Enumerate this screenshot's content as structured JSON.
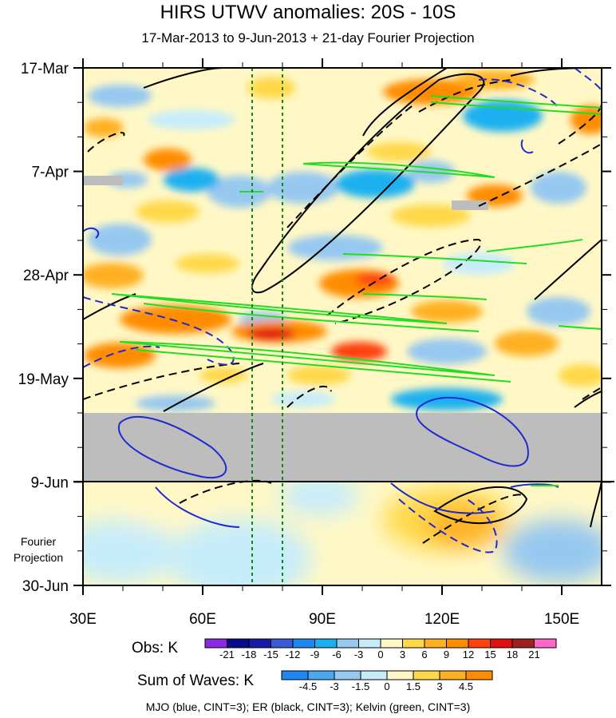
{
  "title": "HIRS UTWV anomalies: 20S - 10S",
  "subtitle": "17-Mar-2013 to 9-Jun-2013 + 21-day Fourier Projection",
  "footnote": "MJO (blue, CINT=3); ER (black, CINT=3); Kelvin (green, CINT=3)",
  "fourier_label": [
    "Fourier",
    "Projection"
  ],
  "colors": {
    "mjo": "#1e2ad0",
    "er": "#000000",
    "kelvin": "#22dd22",
    "missing": "#bdbdbd",
    "reference_lines": "#118811"
  },
  "chart_data": {
    "type": "heatmap",
    "title": "HIRS UTWV anomalies: 20S - 10S",
    "subtitle": "17-Mar-2013 to 9-Jun-2013 + 21-day Fourier Projection",
    "x_axis": {
      "range": [
        30,
        160
      ],
      "units": "degrees longitude",
      "ticks": [
        30,
        60,
        90,
        120,
        150
      ],
      "tick_labels": [
        "30E",
        "60E",
        "90E",
        "120E",
        "150E"
      ]
    },
    "y_axis": {
      "range_days_from_17mar": [
        0,
        105
      ],
      "ticks": [
        0,
        21,
        42,
        63,
        84,
        105
      ],
      "tick_labels": [
        "17-Mar",
        "7-Apr",
        "28-Apr",
        "19-May",
        "9-Jun",
        "30-Jun"
      ],
      "direction": "time increases downward"
    },
    "observed_end": "9-Jun",
    "missing_data_band": [
      "26-May",
      "9-Jun"
    ],
    "reference_longitudes": [
      72,
      80
    ],
    "obs_colorbar": {
      "label": "Obs: K",
      "levels": [
        "-21",
        "-18",
        "-15",
        "-12",
        "-9",
        "-6",
        "-3",
        "0",
        "3",
        "6",
        "9",
        "12",
        "15",
        "18",
        "21"
      ],
      "colors": [
        "#8a2be2",
        "#0a0a8c",
        "#1a1aa8",
        "#3a5ad8",
        "#1e88f0",
        "#1ab0f0",
        "#96c8f0",
        "#c6ecfa",
        "#fff8c6",
        "#ffd84a",
        "#ffb020",
        "#ff8c00",
        "#ff4010",
        "#e01010",
        "#a02020",
        "#ff66cc"
      ]
    },
    "waves_colorbar": {
      "label": "Sum of Waves: K",
      "levels": [
        "-4.5",
        "-3",
        "-1.5",
        "0",
        "1.5",
        "3",
        "4.5"
      ],
      "colors": [
        "#1e88f0",
        "#4aa8f0",
        "#96c8f0",
        "#c6ecfa",
        "#fff8c6",
        "#ffd84a",
        "#ffb020",
        "#ff8c00"
      ]
    },
    "contour_legend": [
      {
        "name": "MJO",
        "color": "blue",
        "cint": 3
      },
      {
        "name": "ER",
        "color": "black",
        "cint": 3
      },
      {
        "name": "Kelvin",
        "color": "green",
        "cint": 3
      }
    ]
  }
}
